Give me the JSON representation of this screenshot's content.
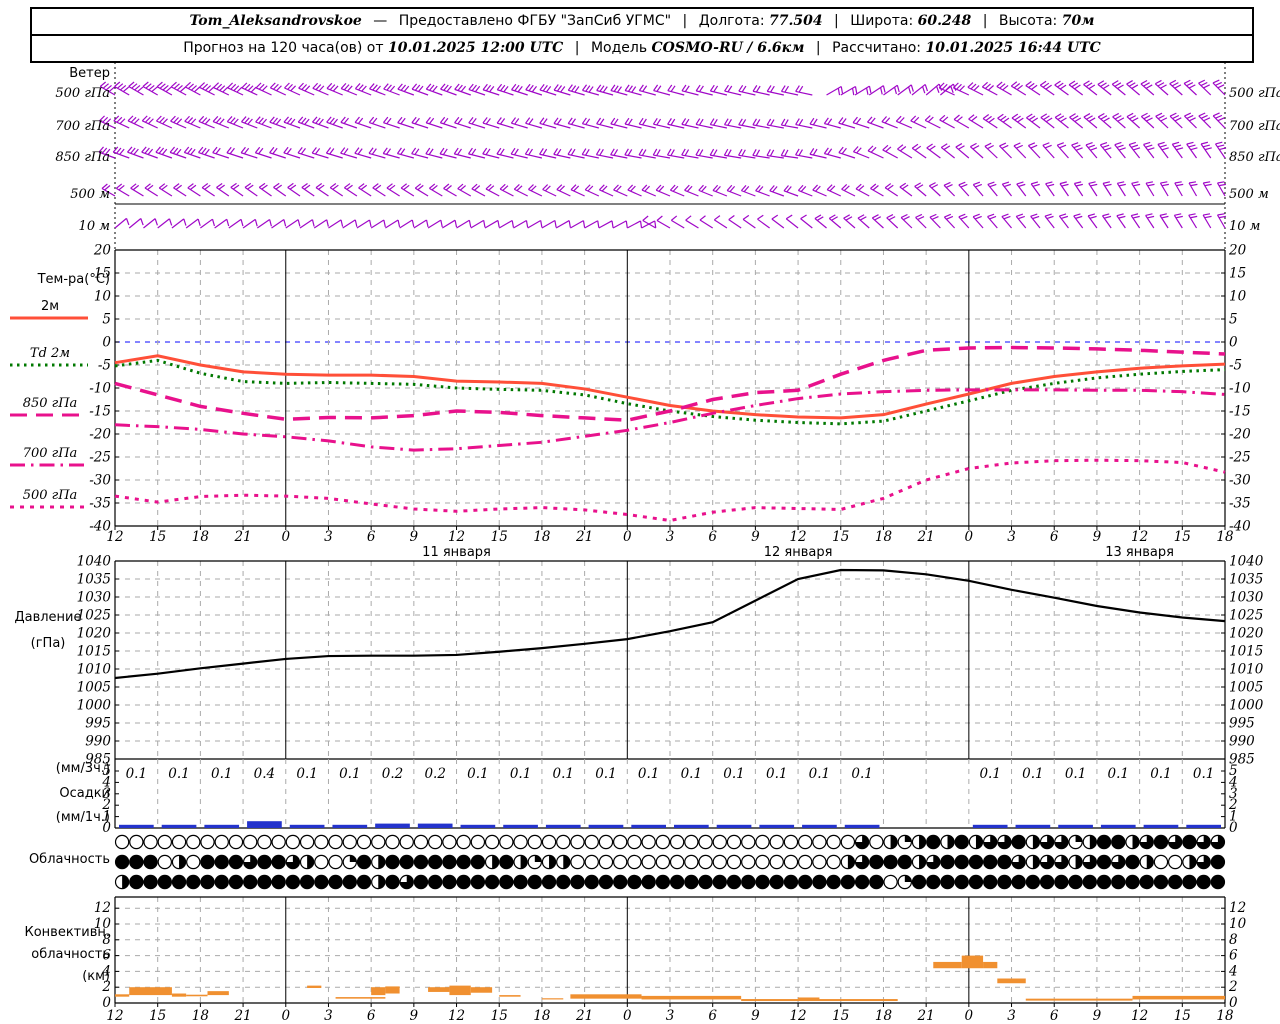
{
  "header": {
    "row1": {
      "station": "Tom_Aleksandrovskoe",
      "dash": "—",
      "provider": "Предоставлено ФГБУ \"ЗапСиб УГМС\"",
      "sep": "|",
      "lon_label": "Долгота:",
      "lon": "77.504",
      "lat_label": "Широта:",
      "lat": "60.248",
      "alt_label": "Высота:",
      "alt": "70м"
    },
    "row2": {
      "forecast_label": "Прогноз на 120 часа(ов) от",
      "forecast_time": "10.01.2025 12:00 UTC",
      "sep": "|",
      "model_label": "Модель",
      "model": "COSMO-RU",
      "model_res": "/ 6.6км",
      "calc_label": "Рассчитано:",
      "calc_time": "10.01.2025 16:44 UTC"
    }
  },
  "panels": {
    "wind": {
      "title": "Ветер"
    },
    "temperature": {
      "title": "Тем-ра(°C)"
    },
    "pressure": {
      "title_1": "Давление",
      "title_2": "(гПа)"
    },
    "precipitation": {
      "unit_3h": "(мм/3ч.)",
      "title": "Осадки",
      "unit_1h": "(мм/1ч.)"
    },
    "cloudiness": {
      "title": "Облачность"
    },
    "convective": {
      "title_1": "Конвективн.",
      "title_2": "облачность",
      "title_3": "(км)"
    }
  },
  "x_axis": {
    "hour_labels": [
      "12",
      "15",
      "18",
      "21",
      "0",
      "3",
      "6",
      "9",
      "12",
      "15",
      "18",
      "21",
      "0",
      "3",
      "6",
      "9",
      "12",
      "15",
      "18",
      "21",
      "0",
      "3",
      "6",
      "9",
      "12",
      "15",
      "18"
    ],
    "date_labels": [
      {
        "label": "11 января",
        "index": 8
      },
      {
        "label": "12 января",
        "index": 16
      },
      {
        "label": "13 января",
        "index": 24
      }
    ],
    "step_hours": 3,
    "midnight_indices": [
      4,
      12,
      20
    ]
  },
  "colors": {
    "t2m": "#ff4f38",
    "td2m": "#007800",
    "pink": "#e8118c",
    "zero_line": "#3a3aff",
    "pressure": "#000000",
    "precip_bar": "#2433cc",
    "convective": "#f09030",
    "wind_barb": "#a008c8",
    "grid": "#aaaaaa"
  },
  "chart_data": [
    {
      "id": "wind",
      "type": "scatter",
      "symbol": "wind-barb",
      "title": "Ветер",
      "x_step_hours": 3,
      "levels": [
        {
          "label": "500 гПа",
          "dir_deg": [
            300,
            300,
            298,
            295,
            295,
            293,
            292,
            290,
            290,
            288,
            288,
            286,
            285,
            285,
            284,
            283,
            282,
            60,
            55,
            50,
            295,
            300,
            305,
            308,
            310,
            312,
            315
          ],
          "feathers": [
            4,
            4,
            4,
            4,
            3,
            3,
            3,
            3,
            3,
            3,
            3,
            3,
            3,
            2,
            2,
            2,
            2,
            2,
            2,
            2,
            3,
            3,
            3,
            3,
            3,
            3,
            3
          ]
        },
        {
          "label": "700 гПа",
          "dir_deg": [
            295,
            295,
            293,
            292,
            290,
            290,
            289,
            288,
            288,
            287,
            286,
            285,
            284,
            283,
            282,
            281,
            280,
            285,
            290,
            295,
            300,
            305,
            308,
            310,
            312,
            314,
            316
          ],
          "feathers": [
            3,
            3,
            3,
            3,
            3,
            3,
            2,
            2,
            2,
            2,
            2,
            2,
            2,
            2,
            2,
            2,
            2,
            2,
            2,
            2,
            2,
            3,
            3,
            3,
            3,
            3,
            3
          ]
        },
        {
          "label": "850 гПа",
          "dir_deg": [
            290,
            290,
            289,
            288,
            288,
            287,
            286,
            285,
            284,
            284,
            283,
            282,
            281,
            280,
            280,
            279,
            278,
            285,
            295,
            305,
            310,
            315,
            318,
            320,
            322,
            324,
            326
          ],
          "feathers": [
            3,
            3,
            3,
            2,
            2,
            2,
            2,
            2,
            2,
            2,
            2,
            2,
            2,
            2,
            2,
            2,
            2,
            2,
            2,
            2,
            2,
            2,
            2,
            3,
            3,
            3,
            3
          ]
        },
        {
          "label": "500 м",
          "dir_deg": [
            300,
            302,
            303,
            305,
            305,
            304,
            303,
            302,
            300,
            298,
            296,
            295,
            294,
            293,
            292,
            291,
            290,
            295,
            300,
            310,
            318,
            322,
            325,
            327,
            328,
            330,
            330
          ],
          "feathers": [
            2,
            2,
            2,
            2,
            2,
            2,
            2,
            2,
            2,
            2,
            2,
            2,
            2,
            2,
            2,
            2,
            2,
            2,
            2,
            2,
            2,
            2,
            2,
            2,
            2,
            2,
            2
          ]
        },
        {
          "label": "10 м",
          "dir_deg": [
            50,
            52,
            54,
            55,
            56,
            57,
            58,
            58,
            59,
            60,
            60,
            61,
            62,
            300,
            302,
            305,
            308,
            310,
            312,
            315,
            318,
            320,
            322,
            324,
            326,
            328,
            330
          ],
          "feathers": [
            1,
            1,
            1,
            1,
            1,
            1,
            1,
            1,
            1,
            1,
            1,
            1,
            1,
            1,
            1,
            1,
            1,
            2,
            2,
            2,
            2,
            2,
            2,
            2,
            2,
            2,
            2
          ]
        }
      ]
    },
    {
      "id": "temperature",
      "type": "line",
      "ylabel": "Тем-ра(°C)",
      "ylim": [
        -40,
        20
      ],
      "ytick_step": 5,
      "x_step_hours": 3,
      "grid": true,
      "series": [
        {
          "name": "2м",
          "color": "#ff4f38",
          "dash": "solid",
          "values": [
            -4.5,
            -3.0,
            -5.0,
            -6.5,
            -7.0,
            -7.2,
            -7.2,
            -7.5,
            -8.5,
            -8.7,
            -9.0,
            -10.2,
            -12.0,
            -13.8,
            -15.0,
            -15.8,
            -16.3,
            -16.5,
            -15.8,
            -13.5,
            -11.3,
            -9.0,
            -7.5,
            -6.5,
            -5.7,
            -5.2,
            -4.8
          ]
        },
        {
          "name": "Td 2м",
          "color": "#007800",
          "dash": "dotted",
          "values": [
            -5.2,
            -4.0,
            -6.8,
            -8.6,
            -9.0,
            -8.8,
            -9.0,
            -9.2,
            -10.0,
            -10.3,
            -10.5,
            -11.5,
            -13.4,
            -15.0,
            -16.2,
            -17.0,
            -17.5,
            -17.8,
            -17.2,
            -15.0,
            -12.8,
            -10.5,
            -9.0,
            -7.8,
            -7.0,
            -6.4,
            -6.0
          ]
        },
        {
          "name": "850 гПа",
          "color": "#e8118c",
          "dash": "longdash",
          "values": [
            -9.0,
            -11.5,
            -14.0,
            -15.5,
            -16.8,
            -16.4,
            -16.5,
            -16.0,
            -15.0,
            -15.3,
            -16.0,
            -16.5,
            -17.0,
            -15.0,
            -12.5,
            -11.0,
            -10.5,
            -7.0,
            -4.0,
            -1.8,
            -1.3,
            -1.2,
            -1.3,
            -1.5,
            -1.8,
            -2.2,
            -2.6
          ]
        },
        {
          "name": "700 гПа",
          "color": "#e8118c",
          "dash": "dashdot",
          "values": [
            -18.0,
            -18.4,
            -19.0,
            -20.0,
            -20.6,
            -21.5,
            -22.8,
            -23.5,
            -23.2,
            -22.5,
            -21.8,
            -20.5,
            -19.2,
            -17.5,
            -15.5,
            -13.8,
            -12.3,
            -11.3,
            -10.8,
            -10.5,
            -10.4,
            -10.4,
            -10.4,
            -10.5,
            -10.5,
            -10.8,
            -11.4
          ]
        },
        {
          "name": "500 гПа",
          "color": "#e8118c",
          "dash": "dash",
          "values": [
            -33.5,
            -34.8,
            -33.6,
            -33.3,
            -33.5,
            -34.0,
            -35.2,
            -36.3,
            -36.8,
            -36.3,
            -36.0,
            -36.5,
            -37.5,
            -38.8,
            -37.0,
            -36.0,
            -36.2,
            -36.4,
            -34.0,
            -30.0,
            -27.5,
            -26.3,
            -25.8,
            -25.7,
            -25.8,
            -26.2,
            -28.3
          ]
        }
      ]
    },
    {
      "id": "pressure",
      "type": "line",
      "ylabel": "Давление (гПа)",
      "ylim": [
        985,
        1040
      ],
      "ytick_step": 5,
      "x_step_hours": 3,
      "grid": true,
      "values": [
        1007.5,
        1008.7,
        1010.2,
        1011.5,
        1012.8,
        1013.6,
        1013.7,
        1013.7,
        1013.9,
        1014.8,
        1015.8,
        1017.0,
        1018.3,
        1020.5,
        1023.0,
        1029.0,
        1035.0,
        1037.5,
        1037.4,
        1036.3,
        1034.5,
        1032.0,
        1029.8,
        1027.5,
        1025.7,
        1024.3,
        1023.3
      ]
    },
    {
      "id": "precipitation",
      "type": "bar",
      "ylabel": "Осадки (мм/3ч.) / (мм/1ч.)",
      "ylim": [
        0,
        5
      ],
      "interval_hours": 3,
      "labels_3h": [
        "0.1",
        "0.1",
        "0.1",
        "0.4",
        "0.1",
        "0.1",
        "0.2",
        "0.2",
        "0.1",
        "0.1",
        "0.1",
        "0.1",
        "0.1",
        "0.1",
        "0.1",
        "0.1",
        "0.1",
        "0.1",
        "",
        "",
        "0.1",
        "0.1",
        "0.1",
        "0.1",
        "0.1",
        "0.1"
      ]
    },
    {
      "id": "cloudiness",
      "type": "heatmap",
      "title": "Облачность",
      "note": "three hourly rows of cloud-cover circles, 0=clear .. 4=overcast",
      "rows": [
        "000000000000000000000000000000000000000000000000000030212424233423312442343433",
        "444020444344320014244444442421220000000000000000000234442344444323323434200234",
        "244444444444444444243444444444444444444444444444444444014444444444444444444444"
      ]
    },
    {
      "id": "convective_cloudiness",
      "type": "bar",
      "ylabel": "Конвективн. облачность (км)",
      "ylim": [
        0,
        13
      ],
      "ytick_step": 2,
      "segments_hours_kmBottom_kmTop": [
        [
          0,
          1,
          0.8,
          1.1
        ],
        [
          1,
          4,
          1.0,
          2.0
        ],
        [
          4,
          5,
          0.8,
          1.2
        ],
        [
          5,
          6.5,
          0.85,
          1.05
        ],
        [
          6.5,
          8,
          1.0,
          1.5
        ],
        [
          13.5,
          14.5,
          1.9,
          2.2
        ],
        [
          15.5,
          19,
          0.55,
          0.75
        ],
        [
          18,
          19,
          1.0,
          2.0
        ],
        [
          19,
          20,
          1.2,
          2.1
        ],
        [
          22,
          23.5,
          1.4,
          2.0
        ],
        [
          23.5,
          25,
          1.0,
          2.2
        ],
        [
          25,
          26.5,
          1.3,
          2.0
        ],
        [
          27,
          28.5,
          0.8,
          1.0
        ],
        [
          30,
          31.5,
          0.45,
          0.6
        ],
        [
          32,
          37,
          0.55,
          1.1
        ],
        [
          37,
          44,
          0.45,
          0.9
        ],
        [
          44,
          55,
          0.25,
          0.5
        ],
        [
          48,
          49.5,
          0.45,
          0.7
        ],
        [
          57.5,
          59.5,
          4.4,
          5.2
        ],
        [
          59.5,
          61,
          4.4,
          6.0
        ],
        [
          61,
          62,
          4.4,
          5.2
        ],
        [
          62,
          64,
          2.5,
          3.1
        ],
        [
          64,
          71.5,
          0.3,
          0.55
        ],
        [
          71.5,
          78,
          0.45,
          0.9
        ]
      ]
    }
  ]
}
